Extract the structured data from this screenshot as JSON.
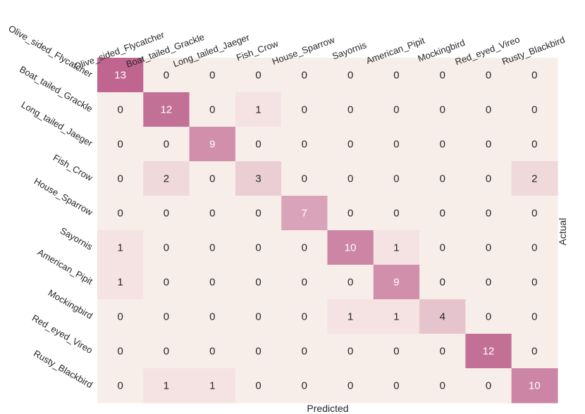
{
  "chart_data": {
    "type": "heatmap",
    "title": "",
    "xlabel": "Predicted",
    "ylabel": "Actual",
    "x_categories": [
      "Olive_sided_Flycatcher",
      "Boat_tailed_Grackle",
      "Long_tailed_Jaeger",
      "Fish_Crow",
      "House_Sparrow",
      "Sayornis",
      "American_Pipit",
      "Mockingbird",
      "Red_eyed_Vireo",
      "Rusty_Blackbird"
    ],
    "y_categories": [
      "Olive_sided_Flycatcher",
      "Boat_tailed_Grackle",
      "Long_tailed_Jaeger",
      "Fish_Crow",
      "House_Sparrow",
      "Sayornis",
      "American_Pipit",
      "Mockingbird",
      "Red_eyed_Vireo",
      "Rusty_Blackbird"
    ],
    "values": [
      [
        13,
        0,
        0,
        0,
        0,
        0,
        0,
        0,
        0,
        0
      ],
      [
        0,
        12,
        0,
        1,
        0,
        0,
        0,
        0,
        0,
        0
      ],
      [
        0,
        0,
        9,
        0,
        0,
        0,
        0,
        0,
        0,
        0
      ],
      [
        0,
        2,
        0,
        3,
        0,
        0,
        0,
        0,
        0,
        2
      ],
      [
        0,
        0,
        0,
        0,
        7,
        0,
        0,
        0,
        0,
        0
      ],
      [
        1,
        0,
        0,
        0,
        0,
        10,
        1,
        0,
        0,
        0
      ],
      [
        1,
        0,
        0,
        0,
        0,
        0,
        9,
        0,
        0,
        0
      ],
      [
        0,
        0,
        0,
        0,
        0,
        1,
        1,
        4,
        0,
        0
      ],
      [
        0,
        0,
        0,
        0,
        0,
        0,
        0,
        0,
        12,
        0
      ],
      [
        0,
        1,
        1,
        0,
        0,
        0,
        0,
        0,
        0,
        10
      ]
    ],
    "vmin": 0,
    "vmax": 13,
    "color_low": "#f8eee9",
    "color_high": "#bf6590",
    "text_color_dark": "#262626",
    "text_color_light": "#ffffff",
    "x_ticks_position": "top",
    "ylabel_position": "right",
    "grid": false,
    "colorbar": false
  }
}
